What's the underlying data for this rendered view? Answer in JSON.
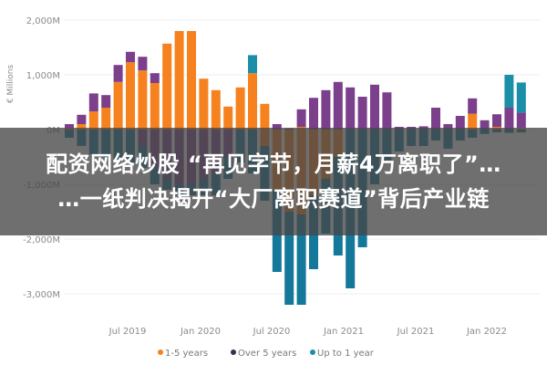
{
  "headline": {
    "line1": "配资网络炒股 “再见字节，月薪4万离职了”…",
    "line2": "…一纸判决揭开“大厂离职赛道”背后产业链"
  },
  "chart_data": {
    "type": "bar",
    "stacked": true,
    "ylabel": "€ Millions",
    "ylim": [
      -3500,
      2200
    ],
    "yticks": [
      2000,
      1000,
      0,
      -1000,
      -2000,
      -3000
    ],
    "ytick_labels": [
      "2,000M",
      "1,000M",
      "0M",
      "-1,000M",
      "-2,000M",
      "-3,000M"
    ],
    "xtick_labels": [
      "Jul 2019",
      "Jan 2020",
      "Jul 2020",
      "Jan 2021",
      "Jul 2021",
      "Jan 2022"
    ],
    "grid": true,
    "legend_position": "bottom",
    "categories": [
      "Feb 2019",
      "Mar 2019",
      "Apr 2019",
      "May 2019",
      "Jun 2019",
      "Jul 2019",
      "Aug 2019",
      "Sep 2019",
      "Oct 2019",
      "Nov 2019",
      "Dec 2019",
      "Jan 2020",
      "Feb 2020",
      "Mar 2020",
      "Apr 2020",
      "May 2020",
      "Jun 2020",
      "Jul 2020",
      "Aug 2020",
      "Sep 2020",
      "Oct 2020",
      "Nov 2020",
      "Dec 2020",
      "Jan 2021",
      "Feb 2021",
      "Mar 2021",
      "Apr 2021",
      "May 2021",
      "Jun 2021",
      "Jul 2021",
      "Aug 2021",
      "Sep 2021",
      "Oct 2021",
      "Nov 2021",
      "Dec 2021",
      "Jan 2022",
      "Feb 2022",
      "Mar 2022"
    ],
    "series": [
      {
        "name": "1-5 years",
        "color": "#f5821f",
        "positive": [
          20,
          100,
          330,
          400,
          870,
          1230,
          1080,
          850,
          1570,
          1800,
          1800,
          930,
          720,
          420,
          770,
          1030,
          470,
          0,
          0,
          50,
          0,
          0,
          0,
          0,
          0,
          0,
          0,
          0,
          0,
          0,
          0,
          0,
          0,
          290,
          0,
          50,
          0,
          30
        ],
        "negative": [
          0,
          0,
          0,
          0,
          0,
          0,
          0,
          0,
          0,
          0,
          0,
          0,
          0,
          0,
          0,
          0,
          -300,
          -1100,
          -1500,
          -1550,
          -1200,
          -900,
          -500,
          0,
          0,
          0,
          0,
          0,
          0,
          0,
          0,
          0,
          0,
          0,
          0,
          0,
          0,
          0
        ]
      },
      {
        "name": "Over 5 years",
        "color": "#7b3f8c",
        "positive": [
          80,
          170,
          330,
          230,
          310,
          190,
          250,
          180,
          0,
          0,
          0,
          0,
          0,
          0,
          0,
          0,
          0,
          100,
          20,
          320,
          580,
          720,
          870,
          770,
          600,
          820,
          680,
          50,
          50,
          60,
          400,
          100,
          250,
          280,
          170,
          230,
          400,
          280
        ],
        "negative": [
          0,
          0,
          0,
          0,
          0,
          0,
          -300,
          -700,
          -900,
          -1000,
          -1000,
          -900,
          -800,
          -500,
          0,
          0,
          0,
          0,
          0,
          0,
          0,
          0,
          0,
          0,
          0,
          0,
          0,
          0,
          0,
          0,
          0,
          0,
          0,
          0,
          0,
          0,
          0,
          0
        ]
      },
      {
        "name": "Up to 1 year",
        "color": "#1b8fa8",
        "positive": [
          0,
          0,
          0,
          0,
          0,
          0,
          0,
          0,
          0,
          0,
          0,
          0,
          0,
          0,
          0,
          330,
          0,
          0,
          0,
          0,
          0,
          0,
          0,
          0,
          0,
          0,
          0,
          0,
          0,
          0,
          0,
          0,
          0,
          0,
          0,
          0,
          600,
          550
        ],
        "negative": [
          -150,
          -300,
          -450,
          -500,
          -550,
          -600,
          -400,
          -300,
          -200,
          -200,
          -200,
          -300,
          -400,
          -400,
          -600,
          -800,
          -1000,
          -1500,
          -1700,
          -1650,
          -1350,
          -1000,
          -1800,
          -2900,
          -2150,
          -1000,
          -600,
          -400,
          -300,
          -300,
          -200,
          -350,
          -200,
          -150,
          -80,
          -50,
          -60,
          -50
        ]
      }
    ]
  }
}
